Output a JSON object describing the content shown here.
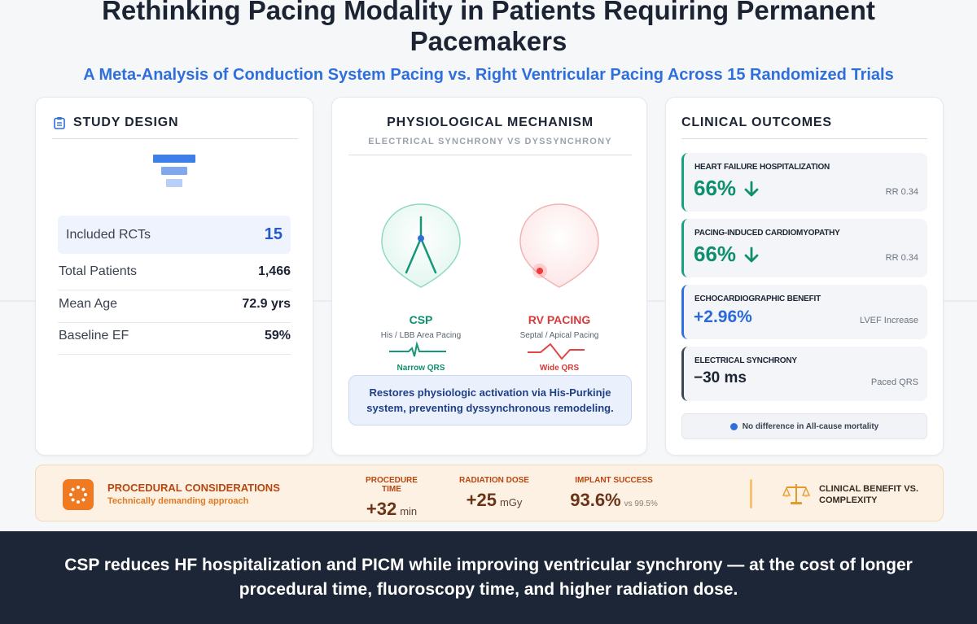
{
  "header": {
    "title_line1": "Rethinking Pacing Modality in Patients Requiring Permanent",
    "title_line2": "Pacemakers",
    "subtitle": "A Meta-Analysis of Conduction System Pacing vs. Right Ventricular Pacing Across 15 Randomized Trials"
  },
  "study_design": {
    "title": "STUDY DESIGN",
    "icon": "clipboard-icon",
    "included_label": "Included RCTs",
    "included_value": "15",
    "rows": [
      {
        "label": "Total Patients",
        "value": "1,466"
      },
      {
        "label": "Mean Age",
        "value": "72.9 yrs"
      },
      {
        "label": "Baseline EF",
        "value": "59%"
      }
    ]
  },
  "mechanism": {
    "title": "PHYSIOLOGICAL MECHANISM",
    "subtitle": "ELECTRICAL SYNCHRONY VS DYSSYNCHRONY",
    "csp": {
      "name": "CSP",
      "desc": "His / LBB Area Pacing",
      "qrs": "Narrow QRS",
      "color": "#0e8f6e"
    },
    "rv": {
      "name": "RV PACING",
      "desc": "Septal / Apical Pacing",
      "qrs": "Wide QRS",
      "color": "#d63b3b"
    },
    "note_line1": "Restores physiologic activation via His-Purkinje",
    "note_line2": "system, preventing dyssynchronous remodeling."
  },
  "outcomes": {
    "title": "CLINICAL OUTCOMES",
    "items": [
      {
        "title": "HEART FAILURE HOSPITALIZATION",
        "value": "66%",
        "icon": "arrow-down-icon",
        "note": "RR 0.34"
      },
      {
        "title": "PACING-INDUCED CARDIOMYOPATHY",
        "value": "66%",
        "icon": "arrow-down-icon",
        "note": "RR 0.34"
      },
      {
        "title": "ECHOCARDIOGRAPHIC BENEFIT",
        "value": "+2.96%",
        "note": "LVEF Increase"
      },
      {
        "title": "ELECTRICAL SYNCHRONY",
        "value": "−30 ms",
        "note": "Paced QRS"
      }
    ],
    "mortality": "No difference in All-cause mortality"
  },
  "procedural": {
    "title": "PROCEDURAL CONSIDERATIONS",
    "subtitle": "Technically demanding approach",
    "metrics": [
      {
        "label": "PROCEDURE TIME",
        "value": "+32",
        "unit": "min"
      },
      {
        "label": "RADIATION DOSE",
        "value": "+25",
        "unit": "mGy"
      },
      {
        "label": "IMPLANT SUCCESS",
        "value": "93.6%",
        "unit": "vs 99.5%"
      }
    ],
    "benefit_line1": "CLINICAL BENEFIT VS.",
    "benefit_line2": "COMPLEXITY"
  },
  "footer": {
    "line1": "CSP reduces HF hospitalization and PICM while improving ventricular synchrony — at the cost of longer",
    "line2": "procedural time, fluoroscopy time, and higher radiation dose."
  },
  "colors": {
    "accent_blue": "#2f6fdc",
    "green": "#0e8f6e",
    "red": "#d63b3b",
    "orange": "#f07a22",
    "navy": "#1d2636"
  }
}
